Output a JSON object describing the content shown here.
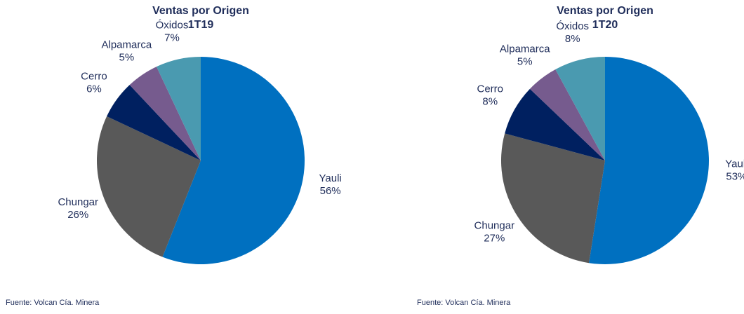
{
  "chart_data": [
    {
      "type": "pie",
      "title": "Ventas por Origen",
      "subtitle": "1T19",
      "categories": [
        "Yauli",
        "Chungar",
        "Cerro",
        "Alpamarca",
        "Óxidos"
      ],
      "values": [
        56,
        26,
        6,
        5,
        7
      ],
      "value_labels": [
        "56%",
        "26%",
        "6%",
        "5%",
        "7%"
      ],
      "colors": [
        "#0070c0",
        "#595959",
        "#002060",
        "#765b8e",
        "#4a9ab0"
      ],
      "source": "Fuente: Volcan Cía. Minera"
    },
    {
      "type": "pie",
      "title": "Ventas por Origen",
      "subtitle": "1T20",
      "categories": [
        "Yauli",
        "Chungar",
        "Cerro",
        "Alpamarca",
        "Óxidos"
      ],
      "values": [
        53,
        27,
        8,
        5,
        8
      ],
      "value_labels": [
        "53%",
        "27%",
        "8%",
        "5%",
        "8%"
      ],
      "colors": [
        "#0070c0",
        "#595959",
        "#002060",
        "#765b8e",
        "#4a9ab0"
      ],
      "source": "Fuente: Volcan Cía. Minera"
    }
  ]
}
